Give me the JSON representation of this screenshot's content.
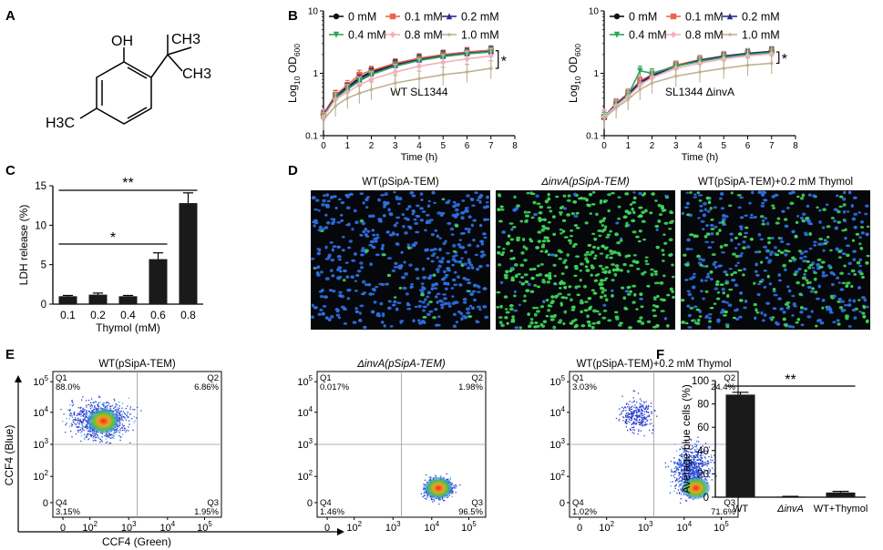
{
  "panel_letters": [
    "A",
    "B",
    "C",
    "D",
    "E",
    "F"
  ],
  "structure": {
    "oh": "OH",
    "ch3_right": "CH3",
    "ch3_top": "CH3",
    "h3c": "H3C"
  },
  "growth_colors": [
    "#111111",
    "#e8674b",
    "#2b2f8f",
    "#2ca65a",
    "#f2b3b8",
    "#bfb293"
  ],
  "chart_data": [
    {
      "id": "B_left",
      "type": "line",
      "title": "WT SL1344",
      "xlabel": "Time (h)",
      "ylabel": "Log10 OD600",
      "xlim": [
        0,
        8
      ],
      "ylim": [
        0.1,
        10
      ],
      "yscale": "log",
      "xticks": [
        "0",
        "1",
        "2",
        "3",
        "4",
        "5",
        "6",
        "7",
        "8"
      ],
      "yticks": [
        "0.1",
        "1",
        "10"
      ],
      "x": [
        0,
        0.5,
        1,
        1.5,
        2,
        3,
        4,
        5,
        6,
        7
      ],
      "series": [
        {
          "name": "0 mM",
          "values": [
            0.22,
            0.45,
            0.6,
            0.85,
            1.05,
            1.4,
            1.7,
            1.95,
            2.15,
            2.3
          ]
        },
        {
          "name": "0.1 mM",
          "values": [
            0.22,
            0.45,
            0.65,
            0.95,
            1.1,
            1.45,
            1.75,
            2.0,
            2.2,
            2.35
          ]
        },
        {
          "name": "0.2 mM",
          "values": [
            0.21,
            0.42,
            0.58,
            0.8,
            1.0,
            1.35,
            1.65,
            1.9,
            2.1,
            2.25
          ]
        },
        {
          "name": "0.4 mM",
          "values": [
            0.2,
            0.4,
            0.55,
            0.75,
            0.95,
            1.3,
            1.6,
            1.85,
            2.05,
            2.2
          ]
        },
        {
          "name": "0.8 mM",
          "values": [
            0.2,
            0.38,
            0.5,
            0.65,
            0.8,
            1.05,
            1.3,
            1.5,
            1.7,
            1.9
          ]
        },
        {
          "name": "1.0 mM",
          "values": [
            0.18,
            0.3,
            0.4,
            0.48,
            0.55,
            0.7,
            0.82,
            0.95,
            1.05,
            1.2
          ]
        }
      ],
      "significance": "*"
    },
    {
      "id": "B_right",
      "type": "line",
      "title": "SL1344 ΔinvA",
      "xlabel": "Time (h)",
      "ylabel": "Log10 OD600",
      "xlim": [
        0,
        8
      ],
      "ylim": [
        0.1,
        10
      ],
      "yscale": "log",
      "xticks": [
        "0",
        "1",
        "2",
        "3",
        "4",
        "5",
        "6",
        "7",
        "8"
      ],
      "yticks": [
        "0.1",
        "1",
        "10"
      ],
      "x": [
        0,
        0.5,
        1,
        1.5,
        2,
        3,
        4,
        5,
        6,
        7
      ],
      "series": [
        {
          "name": "0 mM",
          "values": [
            0.2,
            0.32,
            0.45,
            0.7,
            0.9,
            1.3,
            1.6,
            1.85,
            2.05,
            2.2
          ]
        },
        {
          "name": "0.1 mM",
          "values": [
            0.2,
            0.33,
            0.48,
            0.75,
            0.95,
            1.35,
            1.65,
            1.9,
            2.1,
            2.25
          ]
        },
        {
          "name": "0.2 mM",
          "values": [
            0.2,
            0.32,
            0.46,
            0.72,
            0.92,
            1.3,
            1.62,
            1.88,
            2.08,
            2.25
          ]
        },
        {
          "name": "0.4 mM",
          "values": [
            0.2,
            0.3,
            0.45,
            1.1,
            1.0,
            1.3,
            1.55,
            1.8,
            2.0,
            2.15
          ]
        },
        {
          "name": "0.8 mM",
          "values": [
            0.2,
            0.3,
            0.42,
            0.65,
            0.85,
            1.2,
            1.45,
            1.7,
            1.9,
            2.05
          ]
        },
        {
          "name": "1.0 mM",
          "values": [
            0.19,
            0.28,
            0.38,
            0.55,
            0.7,
            0.9,
            1.05,
            1.2,
            1.35,
            1.45
          ]
        }
      ],
      "significance": "*"
    },
    {
      "id": "C",
      "type": "bar",
      "categories": [
        "0.1",
        "0.2",
        "0.4",
        "0.6",
        "0.8"
      ],
      "values": [
        1.0,
        1.2,
        1.0,
        5.7,
        12.8
      ],
      "errors": [
        0.1,
        0.2,
        0.1,
        0.8,
        1.3
      ],
      "xlabel": "Thymol (mM)",
      "ylabel": "LDH release (%)",
      "ylim": [
        0,
        15
      ],
      "yticks": [
        "0",
        "5",
        "10",
        "15"
      ],
      "significance": [
        {
          "from": "0.1",
          "to": "0.6",
          "label": "*"
        },
        {
          "from": "0.1",
          "to": "0.8",
          "label": "**"
        }
      ]
    },
    {
      "id": "F",
      "type": "bar",
      "categories": [
        "WT",
        "ΔinvA",
        "WT+Thymol"
      ],
      "values": [
        88,
        0.5,
        4
      ],
      "errors": [
        2,
        0.2,
        1
      ],
      "xlabel": "",
      "ylabel": "Average blue cells (%)",
      "ylim": [
        0,
        100
      ],
      "yticks": [
        "0",
        "20",
        "40",
        "60",
        "80",
        "100"
      ],
      "significance": [
        {
          "from": "WT",
          "to": "WT+Thymol",
          "label": "**"
        }
      ]
    }
  ],
  "legend_labels": [
    "0 mM",
    "0.1 mM",
    "0.2 mM",
    "0.4 mM",
    "0.8 mM",
    "1.0 mM"
  ],
  "panel_d": {
    "titles": [
      "WT(pSipA-TEM)",
      "ΔinvA(pSipA-TEM)",
      "WT(pSipA-TEM)+0.2 mM Thymol"
    ],
    "green_fraction": [
      0.03,
      0.92,
      0.35
    ],
    "cell_colors": {
      "blue": "#2f6fe0",
      "green": "#3fd65a",
      "background": "#05070a"
    }
  },
  "panel_e": {
    "xlabel": "CCF4 (Green)",
    "ylabel": "CCF4 (Blue)",
    "xticks": [
      "0",
      "10^2",
      "10^3",
      "10^4",
      "10^5"
    ],
    "yticks": [
      "0",
      "10^2",
      "10^3",
      "10^4",
      "10^5"
    ],
    "plots": [
      {
        "title": "WT(pSipA-TEM)",
        "q1": "Q1",
        "q1v": "88.0%",
        "q2": "Q2",
        "q2v": "6.86%",
        "q3": "Q3",
        "q3v": "1.95%",
        "q4": "Q4",
        "q4v": "3.15%"
      },
      {
        "title": "ΔinvA(pSipA-TEM)",
        "q1": "Q1",
        "q1v": "0.017%",
        "q2": "Q2",
        "q2v": "1.98%",
        "q3": "Q3",
        "q3v": "96.5%",
        "q4": "Q4",
        "q4v": "1.46%"
      },
      {
        "title": "WT(pSipA-TEM)+0.2 mM Thymol",
        "q1": "Q1",
        "q1v": "3.03%",
        "q2": "Q2",
        "q2v": "24.4%",
        "q3": "Q3",
        "q3v": "71.6%",
        "q4": "Q4",
        "q4v": "1.02%"
      }
    ]
  }
}
